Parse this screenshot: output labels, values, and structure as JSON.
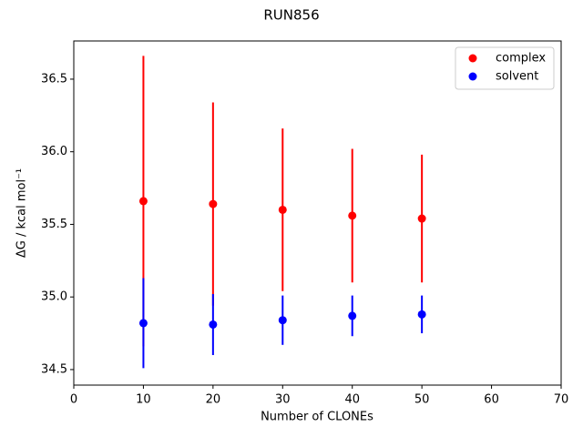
{
  "chart_data": {
    "type": "errorbar-scatter",
    "title": "RUN856",
    "xlabel": "Number of CLONEs",
    "ylabel": "ΔG / kcal mol⁻¹",
    "x": [
      10,
      20,
      30,
      40,
      50
    ],
    "series": [
      {
        "name": "complex",
        "color": "#ff0000",
        "values": [
          35.66,
          35.64,
          35.6,
          35.56,
          35.54
        ],
        "errors": [
          1.0,
          0.7,
          0.56,
          0.46,
          0.44
        ]
      },
      {
        "name": "solvent",
        "color": "#0000ff",
        "values": [
          34.82,
          34.81,
          34.84,
          34.87,
          34.88
        ],
        "errors": [
          0.31,
          0.21,
          0.17,
          0.14,
          0.13
        ]
      }
    ],
    "xlim": [
      0,
      70
    ],
    "xticks": [
      0,
      10,
      20,
      30,
      40,
      50,
      60,
      70
    ],
    "ylim": [
      34.393,
      36.763
    ],
    "yticks": [
      34.5,
      {
        "value": 35,
        "label": "35.0"
      },
      35.5,
      {
        "value": 36,
        "label": "36.0"
      },
      36.5
    ],
    "legend": "upper right"
  }
}
